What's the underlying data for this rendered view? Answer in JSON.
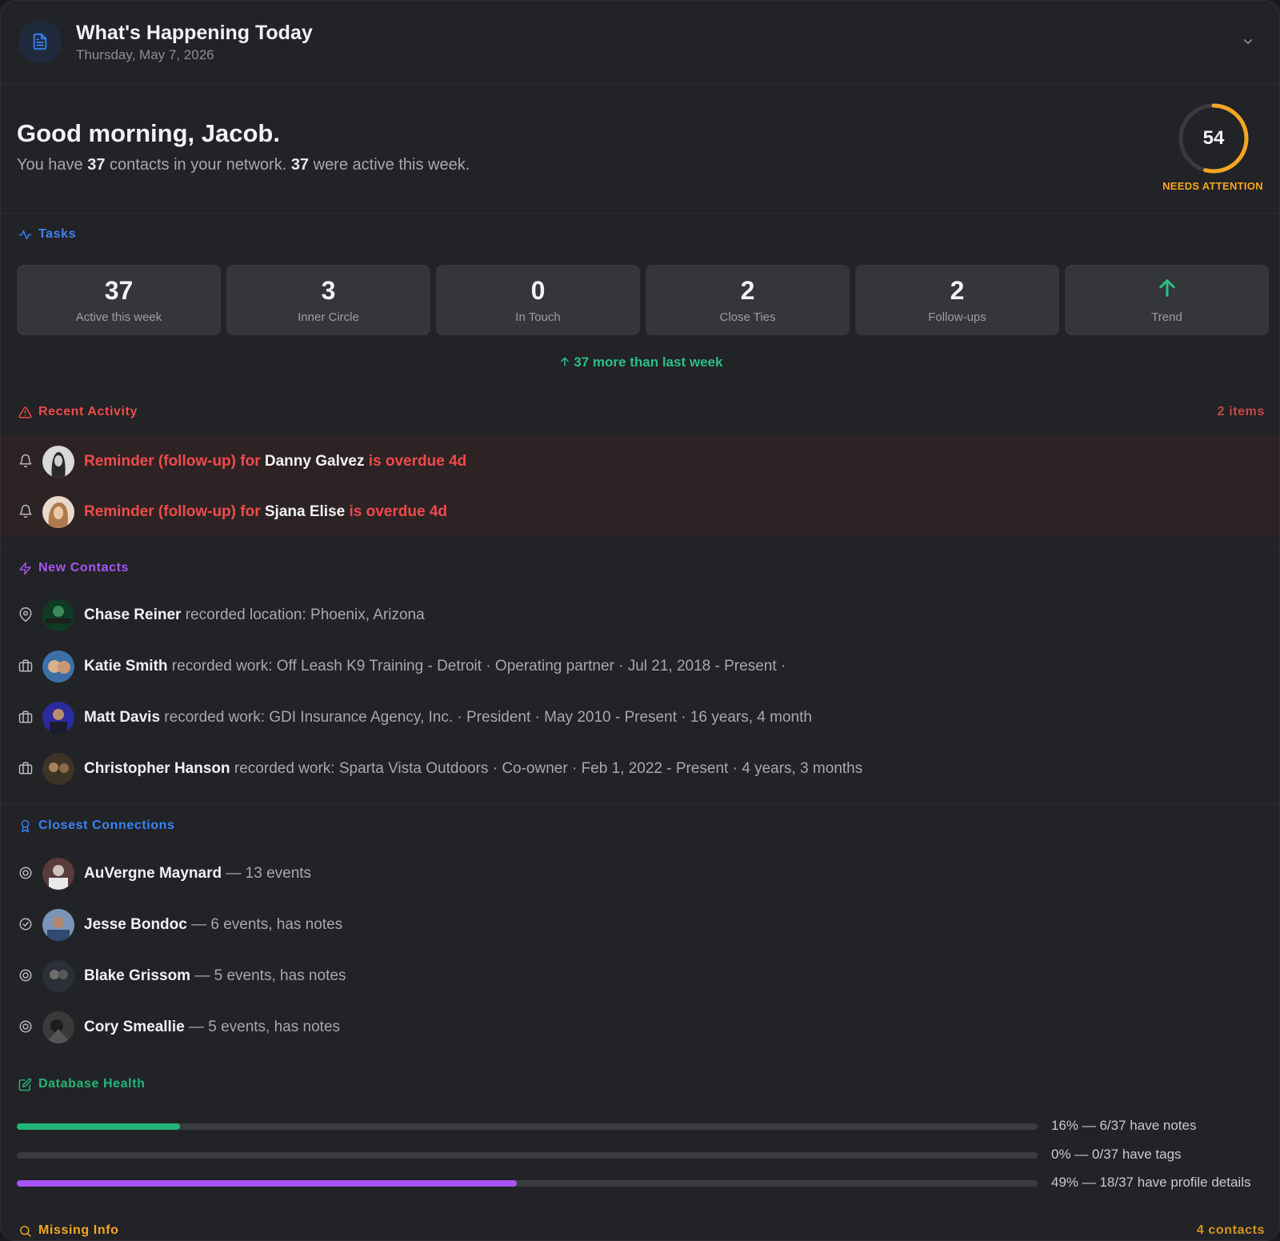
{
  "header": {
    "title": "What's Happening Today",
    "date": "Thursday, May 7, 2026",
    "icon": "document-icon",
    "collapse_icon": "chevron-down-icon"
  },
  "greeting": {
    "title": "Good morning, Jacob.",
    "summary_pre": "You have ",
    "contacts_count": "37",
    "summary_mid": " contacts in your network. ",
    "active_count": "37",
    "summary_post": " were active this week."
  },
  "attention": {
    "score": "54",
    "fraction": 0.54,
    "label": "NEEDS ATTENTION",
    "color": "#f5a623"
  },
  "tasks": {
    "heading": "Tasks",
    "stats": [
      {
        "value": "37",
        "label": "Active this week"
      },
      {
        "value": "3",
        "label": "Inner Circle"
      },
      {
        "value": "0",
        "label": "In Touch"
      },
      {
        "value": "2",
        "label": "Close Ties"
      },
      {
        "value": "2",
        "label": "Follow-ups"
      },
      {
        "value": "",
        "label": "Trend",
        "icon": "arrow-up-icon"
      }
    ],
    "trend_text": "37 more than last week"
  },
  "recent_activity": {
    "heading": "Recent Activity",
    "count": "2 items",
    "items": [
      {
        "prefix": "Reminder (follow-up) for ",
        "name": "Danny Galvez",
        "suffix": " is overdue 4d"
      },
      {
        "prefix": "Reminder (follow-up) for ",
        "name": "Sjana Elise",
        "suffix": " is overdue 4d"
      }
    ]
  },
  "new_contacts": {
    "heading": "New Contacts",
    "items": [
      {
        "name": "Chase Reiner",
        "detail": " recorded location: Phoenix, Arizona",
        "icon": "location-pin-icon"
      },
      {
        "name": "Katie Smith",
        "detail": " recorded work: Off Leash K9 Training - Detroit · Operating partner · Jul 21, 2018 - Present  ·",
        "icon": "briefcase-icon"
      },
      {
        "name": "Matt Davis",
        "detail": " recorded work: GDI Insurance Agency, Inc. · President · May 2010 - Present  · 16 years, 4 month",
        "icon": "briefcase-icon"
      },
      {
        "name": "Christopher Hanson",
        "detail": " recorded work: Sparta Vista Outdoors · Co-owner · Feb 1, 2022 - Present  · 4 years, 3 months",
        "icon": "briefcase-icon"
      }
    ]
  },
  "closest": {
    "heading": "Closest Connections",
    "items": [
      {
        "name": "AuVergne Maynard",
        "detail": " — 13 events",
        "icon": "badge-icon"
      },
      {
        "name": "Jesse Bondoc",
        "detail": " — 6 events, has notes",
        "icon": "check-badge-icon"
      },
      {
        "name": "Blake Grissom",
        "detail": " — 5 events, has notes",
        "icon": "badge-icon"
      },
      {
        "name": "Cory Smeallie",
        "detail": " — 5 events, has notes",
        "icon": "badge-icon"
      }
    ]
  },
  "database_health": {
    "heading": "Database Health",
    "bars": [
      {
        "pct": 0.16,
        "label": "16% — 6/37 have notes",
        "color": "#22b67a"
      },
      {
        "pct": 0.0,
        "label": "0% — 0/37 have tags",
        "color": "#8b5cf6"
      },
      {
        "pct": 0.49,
        "label": "49% — 18/37 have profile details",
        "color": "#a855f7"
      }
    ]
  },
  "missing_info": {
    "heading": "Missing Info",
    "count": "4 contacts"
  },
  "colors": {
    "blue": "#3b82f6",
    "red": "#ef4b4b",
    "purple": "#a855f7",
    "green": "#2bbf85",
    "amber": "#f5a623"
  }
}
